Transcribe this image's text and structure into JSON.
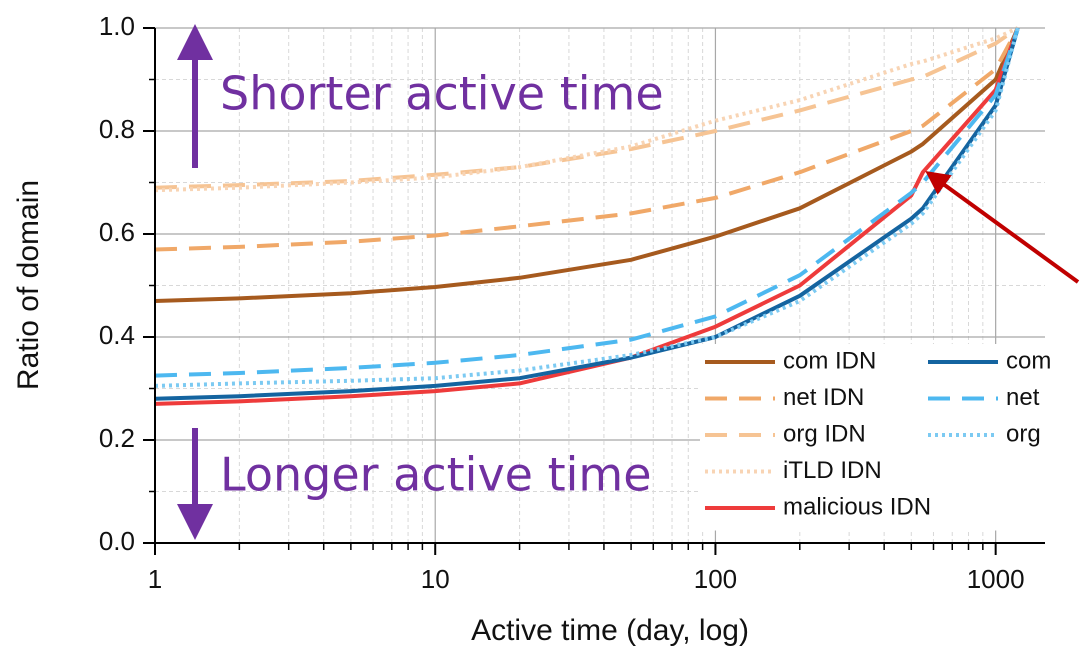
{
  "chart_data": {
    "type": "line",
    "xlabel": "Active time (day, log)",
    "ylabel": "Ratio of domain",
    "x_scale": "log",
    "xlim": [
      1,
      1500
    ],
    "ylim": [
      0,
      1
    ],
    "xticks": [
      1,
      10,
      100,
      1000
    ],
    "yticks": [
      {
        "value": 0,
        "label": "0.0"
      },
      0.2,
      0.4,
      0.6,
      0.8,
      {
        "value": 1,
        "label": "1.0"
      }
    ],
    "grid": true,
    "legend": "lower right",
    "x": [
      1,
      2,
      5,
      10,
      20,
      50,
      100,
      200,
      500,
      550,
      1000,
      1200
    ],
    "series": [
      {
        "name": "com IDN",
        "color": "#a65a1e",
        "dash": "solid",
        "values": [
          0.47,
          0.475,
          0.485,
          0.497,
          0.515,
          0.55,
          0.595,
          0.65,
          0.76,
          0.775,
          0.9,
          1.0
        ]
      },
      {
        "name": "net IDN",
        "color": "#f0a868",
        "dash": "dashed",
        "values": [
          0.57,
          0.575,
          0.585,
          0.597,
          0.615,
          0.64,
          0.67,
          0.72,
          0.8,
          0.81,
          0.92,
          1.0
        ]
      },
      {
        "name": "org IDN",
        "color": "#f6c494",
        "dash": "dashed",
        "values": [
          0.69,
          0.695,
          0.703,
          0.715,
          0.73,
          0.765,
          0.8,
          0.84,
          0.9,
          0.905,
          0.97,
          1.0
        ]
      },
      {
        "name": "iTLD IDN",
        "color": "#f8d4b4",
        "dash": "dotted",
        "values": [
          0.685,
          0.69,
          0.7,
          0.71,
          0.73,
          0.77,
          0.82,
          0.86,
          0.93,
          0.935,
          0.98,
          1.0
        ]
      },
      {
        "name": "malicious IDN",
        "color": "#ee3b3b",
        "dash": "solid",
        "values": [
          0.27,
          0.275,
          0.285,
          0.295,
          0.31,
          0.36,
          0.42,
          0.5,
          0.675,
          0.72,
          0.88,
          1.0
        ]
      },
      {
        "name": "com",
        "color": "#1464a0",
        "dash": "solid",
        "values": [
          0.28,
          0.285,
          0.295,
          0.305,
          0.32,
          0.36,
          0.4,
          0.48,
          0.63,
          0.65,
          0.85,
          1.0
        ]
      },
      {
        "name": "net",
        "color": "#4db8f0",
        "dash": "dashed",
        "values": [
          0.325,
          0.33,
          0.34,
          0.35,
          0.365,
          0.395,
          0.44,
          0.52,
          0.68,
          0.7,
          0.87,
          1.0
        ]
      },
      {
        "name": "org",
        "color": "#7ccaf2",
        "dash": "dotted",
        "values": [
          0.305,
          0.31,
          0.315,
          0.32,
          0.335,
          0.365,
          0.4,
          0.47,
          0.62,
          0.64,
          0.84,
          1.0
        ]
      }
    ],
    "annotations": [
      "Shorter active time",
      "Longer active time"
    ]
  }
}
